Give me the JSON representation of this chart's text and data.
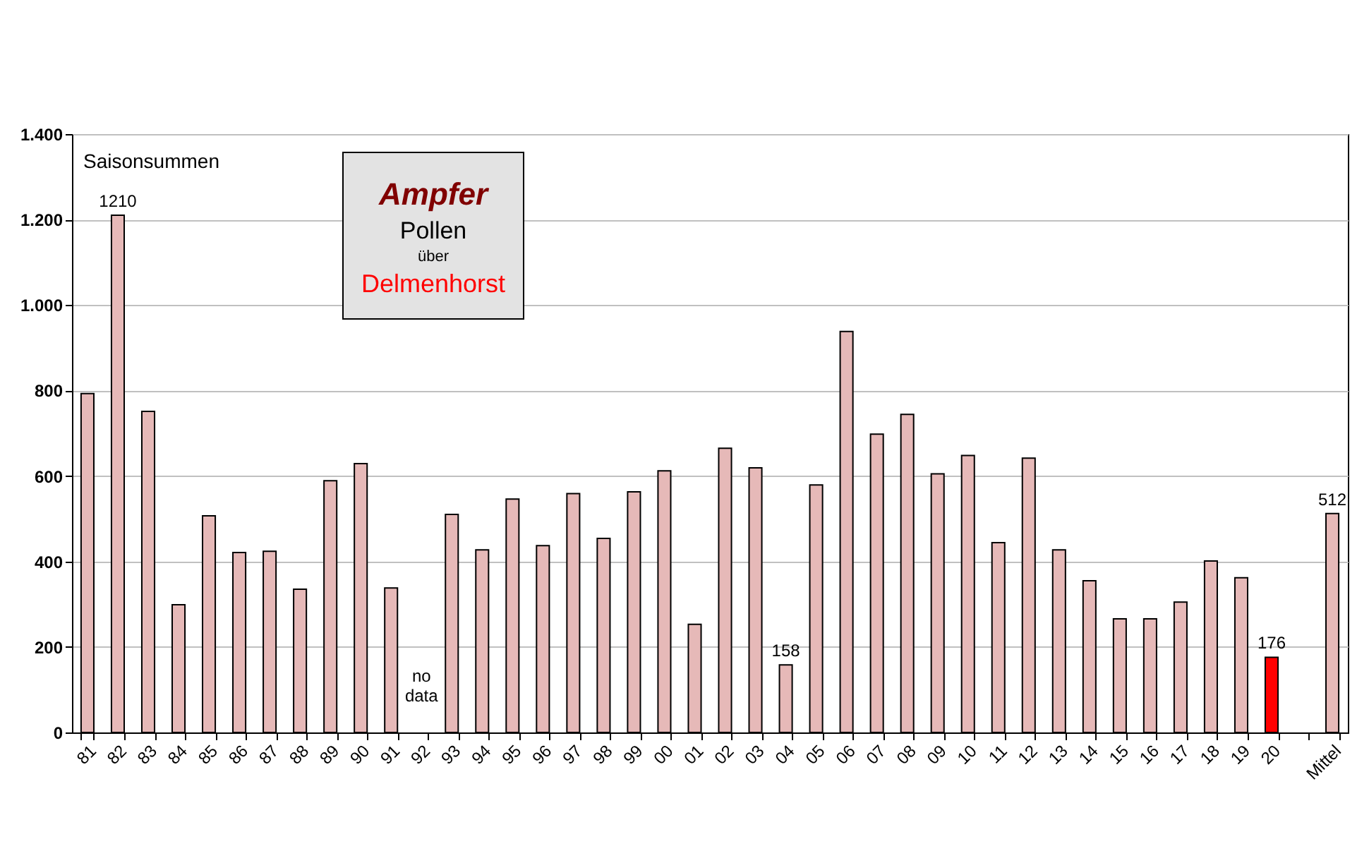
{
  "chart_data": {
    "type": "bar",
    "title": "Ampfer",
    "categories": [
      "81",
      "82",
      "83",
      "84",
      "85",
      "86",
      "87",
      "88",
      "89",
      "90",
      "91",
      "92",
      "93",
      "94",
      "95",
      "96",
      "97",
      "98",
      "99",
      "00",
      "01",
      "02",
      "03",
      "04",
      "05",
      "06",
      "07",
      "08",
      "09",
      "10",
      "11",
      "12",
      "13",
      "14",
      "15",
      "16",
      "17",
      "18",
      "19",
      "20",
      null,
      "Mittel"
    ],
    "values": [
      793,
      1210,
      751,
      299,
      507,
      421,
      424,
      335,
      589,
      629,
      338,
      null,
      510,
      427,
      546,
      437,
      559,
      454,
      563,
      612,
      253,
      665,
      619,
      158,
      579,
      938,
      698,
      744,
      605,
      648,
      444,
      642,
      427,
      355,
      266,
      266,
      305,
      401,
      362,
      176,
      null,
      512
    ],
    "colors": [
      "#e6b9b8",
      "#e6b9b8",
      "#e6b9b8",
      "#e6b9b8",
      "#e6b9b8",
      "#e6b9b8",
      "#e6b9b8",
      "#e6b9b8",
      "#e6b9b8",
      "#e6b9b8",
      "#e6b9b8",
      "#e6b9b8",
      "#e6b9b8",
      "#e6b9b8",
      "#e6b9b8",
      "#e6b9b8",
      "#e6b9b8",
      "#e6b9b8",
      "#e6b9b8",
      "#e6b9b8",
      "#e6b9b8",
      "#e6b9b8",
      "#e6b9b8",
      "#e6b9b8",
      "#e6b9b8",
      "#e6b9b8",
      "#e6b9b8",
      "#e6b9b8",
      "#e6b9b8",
      "#e6b9b8",
      "#e6b9b8",
      "#e6b9b8",
      "#e6b9b8",
      "#e6b9b8",
      "#e6b9b8",
      "#e6b9b8",
      "#e6b9b8",
      "#e6b9b8",
      "#e6b9b8",
      "#ff0000",
      "#e6b9b8",
      "#e6b9b8"
    ],
    "value_labels": [
      null,
      "1210",
      null,
      null,
      null,
      null,
      null,
      null,
      null,
      null,
      null,
      null,
      null,
      null,
      null,
      null,
      null,
      null,
      null,
      null,
      null,
      null,
      null,
      "158",
      null,
      null,
      null,
      null,
      null,
      null,
      null,
      null,
      null,
      null,
      null,
      null,
      null,
      null,
      null,
      "176",
      null,
      "512"
    ],
    "ylim": [
      0,
      1400
    ],
    "yticks": [
      0,
      200,
      400,
      600,
      800,
      {
        "value": 1000,
        "label": "1.000"
      },
      {
        "value": 1200,
        "label": "1.200"
      },
      {
        "value": 1400,
        "label": "1.400"
      }
    ],
    "grid": "y",
    "annotations": [
      "Pollen",
      "über",
      "Delmenhorst",
      "Saisonsummen",
      "no data"
    ]
  }
}
